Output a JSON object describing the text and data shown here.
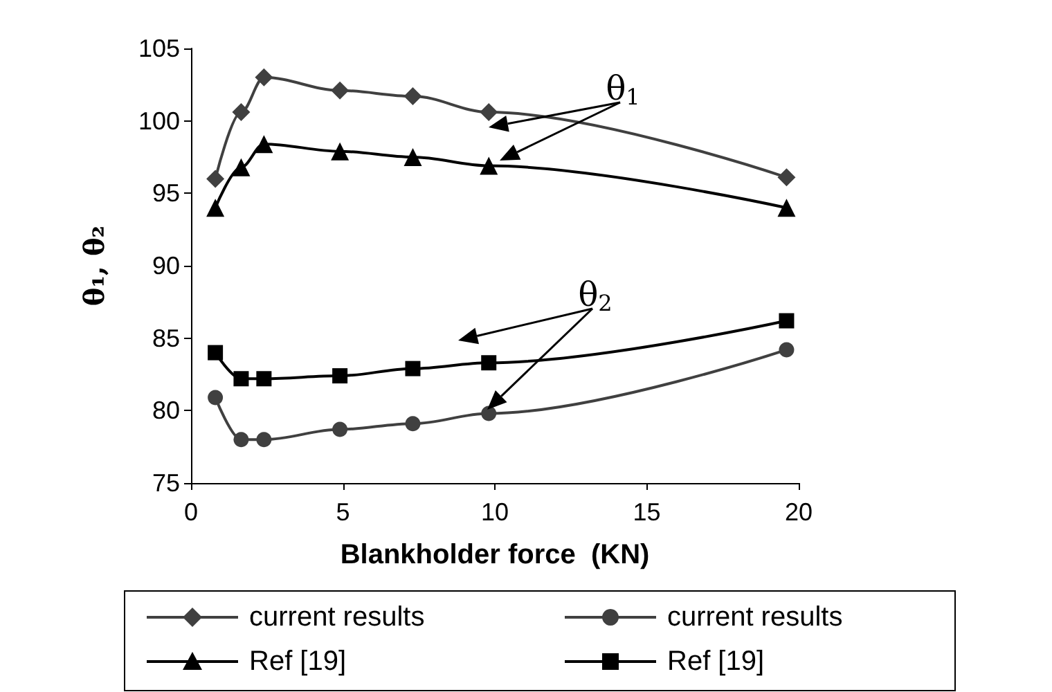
{
  "chart_data": {
    "type": "line",
    "xlabel": "Blankholder force  (KN)",
    "ylabel": "θ₁, θ₂",
    "x": [
      0.8,
      1.65,
      2.4,
      4.9,
      7.3,
      9.8,
      19.6
    ],
    "series": [
      {
        "name": "current results",
        "color": "#404040",
        "marker": "diamond",
        "values": [
          96.0,
          100.6,
          103.0,
          102.1,
          101.7,
          100.6,
          96.1
        ]
      },
      {
        "name": "Ref [19]",
        "color": "#000000",
        "marker": "triangle",
        "values": [
          94.0,
          96.8,
          98.4,
          97.9,
          97.5,
          96.9,
          94.0
        ]
      },
      {
        "name": "current results",
        "color": "#404040",
        "marker": "circle",
        "values": [
          80.9,
          78.0,
          78.0,
          78.7,
          79.1,
          79.8,
          84.2
        ]
      },
      {
        "name": "Ref [19]",
        "color": "#000000",
        "marker": "square",
        "values": [
          84.0,
          82.2,
          82.2,
          82.4,
          82.9,
          83.3,
          86.2
        ]
      }
    ],
    "xlim": [
      0,
      20
    ],
    "xticks": [
      0,
      5,
      10,
      15,
      20
    ],
    "ylim": [
      75,
      105
    ],
    "yticks": [
      75,
      80,
      85,
      90,
      95,
      100,
      105
    ],
    "grid": false,
    "legend": "bottom",
    "line_style": "solid",
    "annotations": [
      "θ$_{1}$",
      "θ$_{2}$"
    ]
  }
}
